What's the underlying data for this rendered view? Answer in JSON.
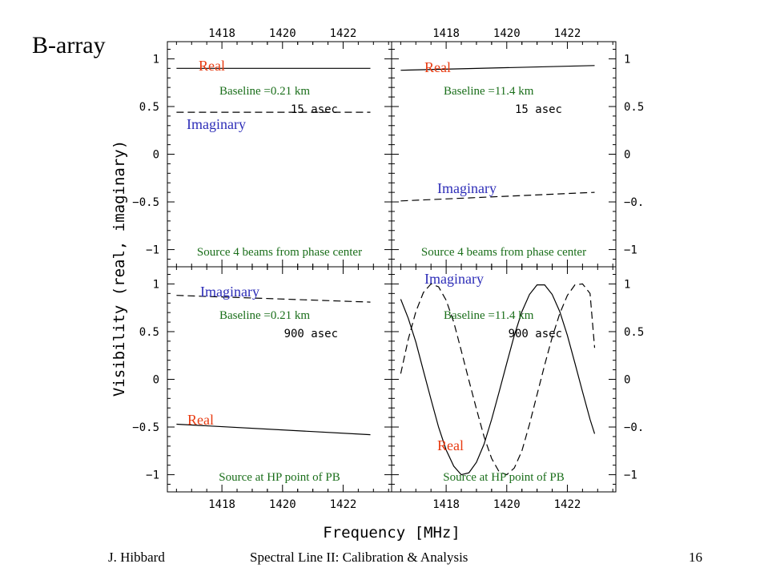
{
  "slide": {
    "title": "B-array",
    "footer_left": "J. Hibbard",
    "footer_center": "Spectral Line II: Calibration & Analysis",
    "page_number": "16"
  },
  "colors": {
    "real": "#e83a10",
    "imaginary": "#2e2eb8",
    "annotation": "#1a6e1a",
    "axis": "#000000"
  },
  "axes": {
    "xlabel": "Frequency [MHz]",
    "ylabel": "Visibility (real, imaginary)",
    "x_ticks": [
      "1418",
      "1420",
      "1422"
    ],
    "y_ticks_left": [
      "1",
      "0.5",
      "0",
      "−0.5",
      "−1"
    ],
    "y_ticks_right": [
      "1",
      "0.5",
      "0",
      "−0.",
      "−1"
    ]
  },
  "chart_data": [
    {
      "type": "line",
      "panel": "top-left",
      "xlim": [
        1416.2,
        1423.6
      ],
      "ylim": [
        -1.18,
        1.18
      ],
      "baseline": "Baseline =0.21 km",
      "offset": "15 asec",
      "caption": "Source 4 beams from phase center",
      "series": [
        {
          "name": "Real",
          "style": "solid",
          "x": [
            1416.5,
            1422.9
          ],
          "y": [
            0.9,
            0.9
          ]
        },
        {
          "name": "Imaginary",
          "style": "dashed",
          "x": [
            1416.5,
            1422.9
          ],
          "y": [
            0.44,
            0.44
          ]
        }
      ]
    },
    {
      "type": "line",
      "panel": "top-right",
      "xlim": [
        1416.2,
        1423.6
      ],
      "ylim": [
        -1.18,
        1.18
      ],
      "baseline": "Baseline =11.4 km",
      "offset": "15 asec",
      "caption": "Source 4 beams from phase center",
      "series": [
        {
          "name": "Real",
          "style": "solid",
          "x": [
            1416.5,
            1422.9
          ],
          "y": [
            0.88,
            0.93
          ]
        },
        {
          "name": "Imaginary",
          "style": "dashed",
          "x": [
            1416.5,
            1422.9
          ],
          "y": [
            -0.49,
            -0.4
          ]
        }
      ]
    },
    {
      "type": "line",
      "panel": "bottom-left",
      "xlim": [
        1416.2,
        1423.6
      ],
      "ylim": [
        -1.18,
        1.18
      ],
      "baseline": "Baseline =0.21 km",
      "offset": "900 asec",
      "caption": "Source at HP point of PB",
      "series": [
        {
          "name": "Imaginary",
          "style": "dashed",
          "x": [
            1416.5,
            1422.9
          ],
          "y": [
            0.88,
            0.81
          ]
        },
        {
          "name": "Real",
          "style": "solid",
          "x": [
            1416.5,
            1422.9
          ],
          "y": [
            -0.47,
            -0.58
          ]
        }
      ]
    },
    {
      "type": "line",
      "panel": "bottom-right",
      "xlim": [
        1416.2,
        1423.6
      ],
      "ylim": [
        -1.18,
        1.18
      ],
      "baseline": "Baseline =11.4 km",
      "offset": "900 asec",
      "caption": "Source at HP point of PB",
      "series": [
        {
          "name": "Real",
          "style": "solid",
          "x": [
            1416.5,
            1416.75,
            1417.0,
            1417.25,
            1417.5,
            1417.75,
            1418.0,
            1418.25,
            1418.5,
            1418.75,
            1419.0,
            1419.25,
            1419.5,
            1419.75,
            1420.0,
            1420.25,
            1420.5,
            1420.75,
            1421.0,
            1421.25,
            1421.5,
            1421.75,
            1422.0,
            1422.25,
            1422.5,
            1422.75,
            1422.9
          ],
          "y": [
            0.84,
            0.64,
            0.39,
            0.09,
            -0.21,
            -0.5,
            -0.74,
            -0.91,
            -1.0,
            -0.98,
            -0.87,
            -0.68,
            -0.42,
            -0.13,
            0.17,
            0.46,
            0.71,
            0.89,
            0.99,
            0.99,
            0.89,
            0.71,
            0.46,
            0.17,
            -0.13,
            -0.42,
            -0.57
          ]
        },
        {
          "name": "Imaginary",
          "style": "dashed",
          "x": [
            1416.5,
            1416.75,
            1417.0,
            1417.25,
            1417.5,
            1417.75,
            1418.0,
            1418.25,
            1418.5,
            1418.75,
            1419.0,
            1419.25,
            1419.5,
            1419.75,
            1420.0,
            1420.25,
            1420.5,
            1420.75,
            1421.0,
            1421.25,
            1421.5,
            1421.75,
            1422.0,
            1422.25,
            1422.5,
            1422.75,
            1422.9
          ],
          "y": [
            0.06,
            0.42,
            0.71,
            0.91,
            1.0,
            0.97,
            0.83,
            0.6,
            0.3,
            -0.01,
            -0.31,
            -0.6,
            -0.83,
            -0.97,
            -1.0,
            -0.93,
            -0.75,
            -0.47,
            -0.16,
            0.15,
            0.44,
            0.69,
            0.88,
            0.99,
            1.0,
            0.9,
            0.33
          ]
        }
      ]
    }
  ]
}
